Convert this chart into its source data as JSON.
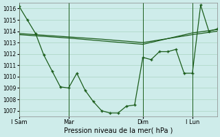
{
  "background_color": "#ceecea",
  "grid_color": "#b0d8c8",
  "line_color": "#1a5c1a",
  "title": "Pression niveau de la mer( hPa )",
  "ylim": [
    1006.5,
    1016.5
  ],
  "yticks": [
    1007,
    1008,
    1009,
    1010,
    1011,
    1012,
    1013,
    1014,
    1015,
    1016
  ],
  "xlim": [
    0,
    24
  ],
  "xtick_labels": [
    "I Sam",
    "Mar",
    "Dim",
    "I Lun"
  ],
  "xtick_positions": [
    0,
    6,
    15,
    21
  ],
  "vline_positions": [
    0,
    6,
    15,
    21
  ],
  "trend_x": [
    0,
    6,
    10,
    15,
    21,
    24
  ],
  "trend_y": [
    1013.8,
    1013.5,
    1013.3,
    1013.0,
    1013.7,
    1014.0
  ],
  "trend2_x": [
    0,
    6,
    10,
    15,
    21,
    24
  ],
  "trend2_y": [
    1013.7,
    1013.4,
    1013.15,
    1012.85,
    1013.85,
    1014.15
  ],
  "data_x": [
    0,
    1,
    2,
    3,
    4,
    5,
    6,
    7,
    8,
    9,
    10,
    11,
    12,
    13,
    14,
    15,
    16,
    17,
    18,
    19,
    20,
    21,
    22,
    23,
    24
  ],
  "data_y": [
    1016.2,
    1015.0,
    1013.8,
    1011.9,
    1010.5,
    1009.1,
    1009.0,
    1010.3,
    1008.8,
    1007.8,
    1007.0,
    1006.8,
    1006.8,
    1007.4,
    1007.5,
    1011.7,
    1011.5,
    1012.2,
    1012.2,
    1012.4,
    1010.3,
    1010.3,
    1016.3,
    1014.0,
    1014.2
  ]
}
